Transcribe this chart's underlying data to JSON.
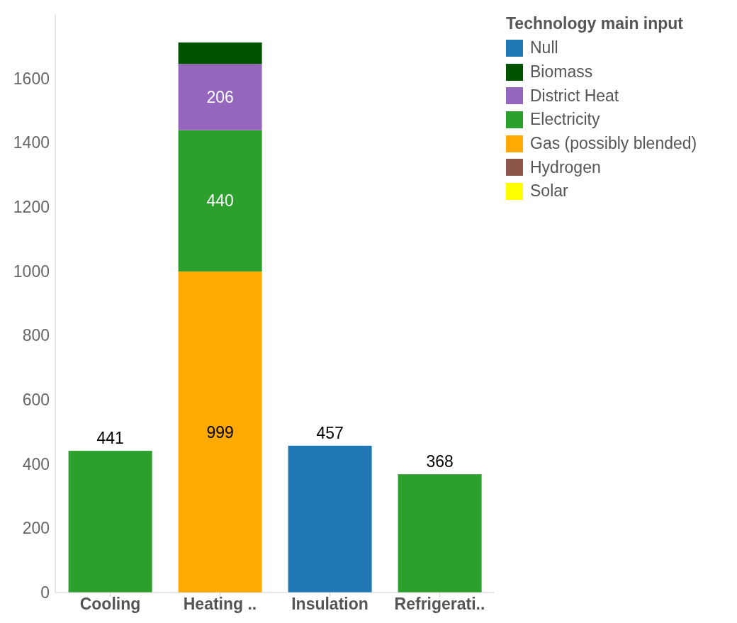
{
  "chart_data": {
    "type": "bar",
    "stacked": true,
    "legend_title": "Technology main input",
    "legend": "top right",
    "grid": false,
    "categories": [
      "Cooling",
      "Heating ..",
      "Insulation",
      "Refrigerati.."
    ],
    "ylim": [
      0,
      1800
    ],
    "yticks": [
      0,
      200,
      400,
      600,
      800,
      1000,
      1200,
      1400,
      1600
    ],
    "series": [
      {
        "name": "Solar",
        "color": "#ffff00",
        "values": [
          null,
          null,
          null,
          null
        ]
      },
      {
        "name": "Hydrogen",
        "color": "#8c564b",
        "values": [
          null,
          null,
          null,
          null
        ]
      },
      {
        "name": "Gas (possibly blended)",
        "color": "#ffaa00",
        "values": [
          null,
          999,
          null,
          null
        ],
        "value_labels": [
          null,
          "999",
          null,
          null
        ]
      },
      {
        "name": "Electricity",
        "color": "#2ca02c",
        "values": [
          441,
          440,
          null,
          368
        ],
        "value_labels": [
          "441",
          "440",
          null,
          "368"
        ]
      },
      {
        "name": "District Heat",
        "color": "#9467bd",
        "values": [
          null,
          206,
          null,
          null
        ],
        "value_labels": [
          null,
          "206",
          null,
          null
        ]
      },
      {
        "name": "Biomass",
        "color": "#005200",
        "values": [
          null,
          67,
          null,
          null
        ],
        "value_labels": [
          null,
          null,
          null,
          null
        ]
      },
      {
        "name": "Null",
        "color": "#1f77b4",
        "values": [
          null,
          null,
          457,
          null
        ],
        "value_labels": [
          null,
          null,
          "457",
          null
        ]
      }
    ]
  }
}
